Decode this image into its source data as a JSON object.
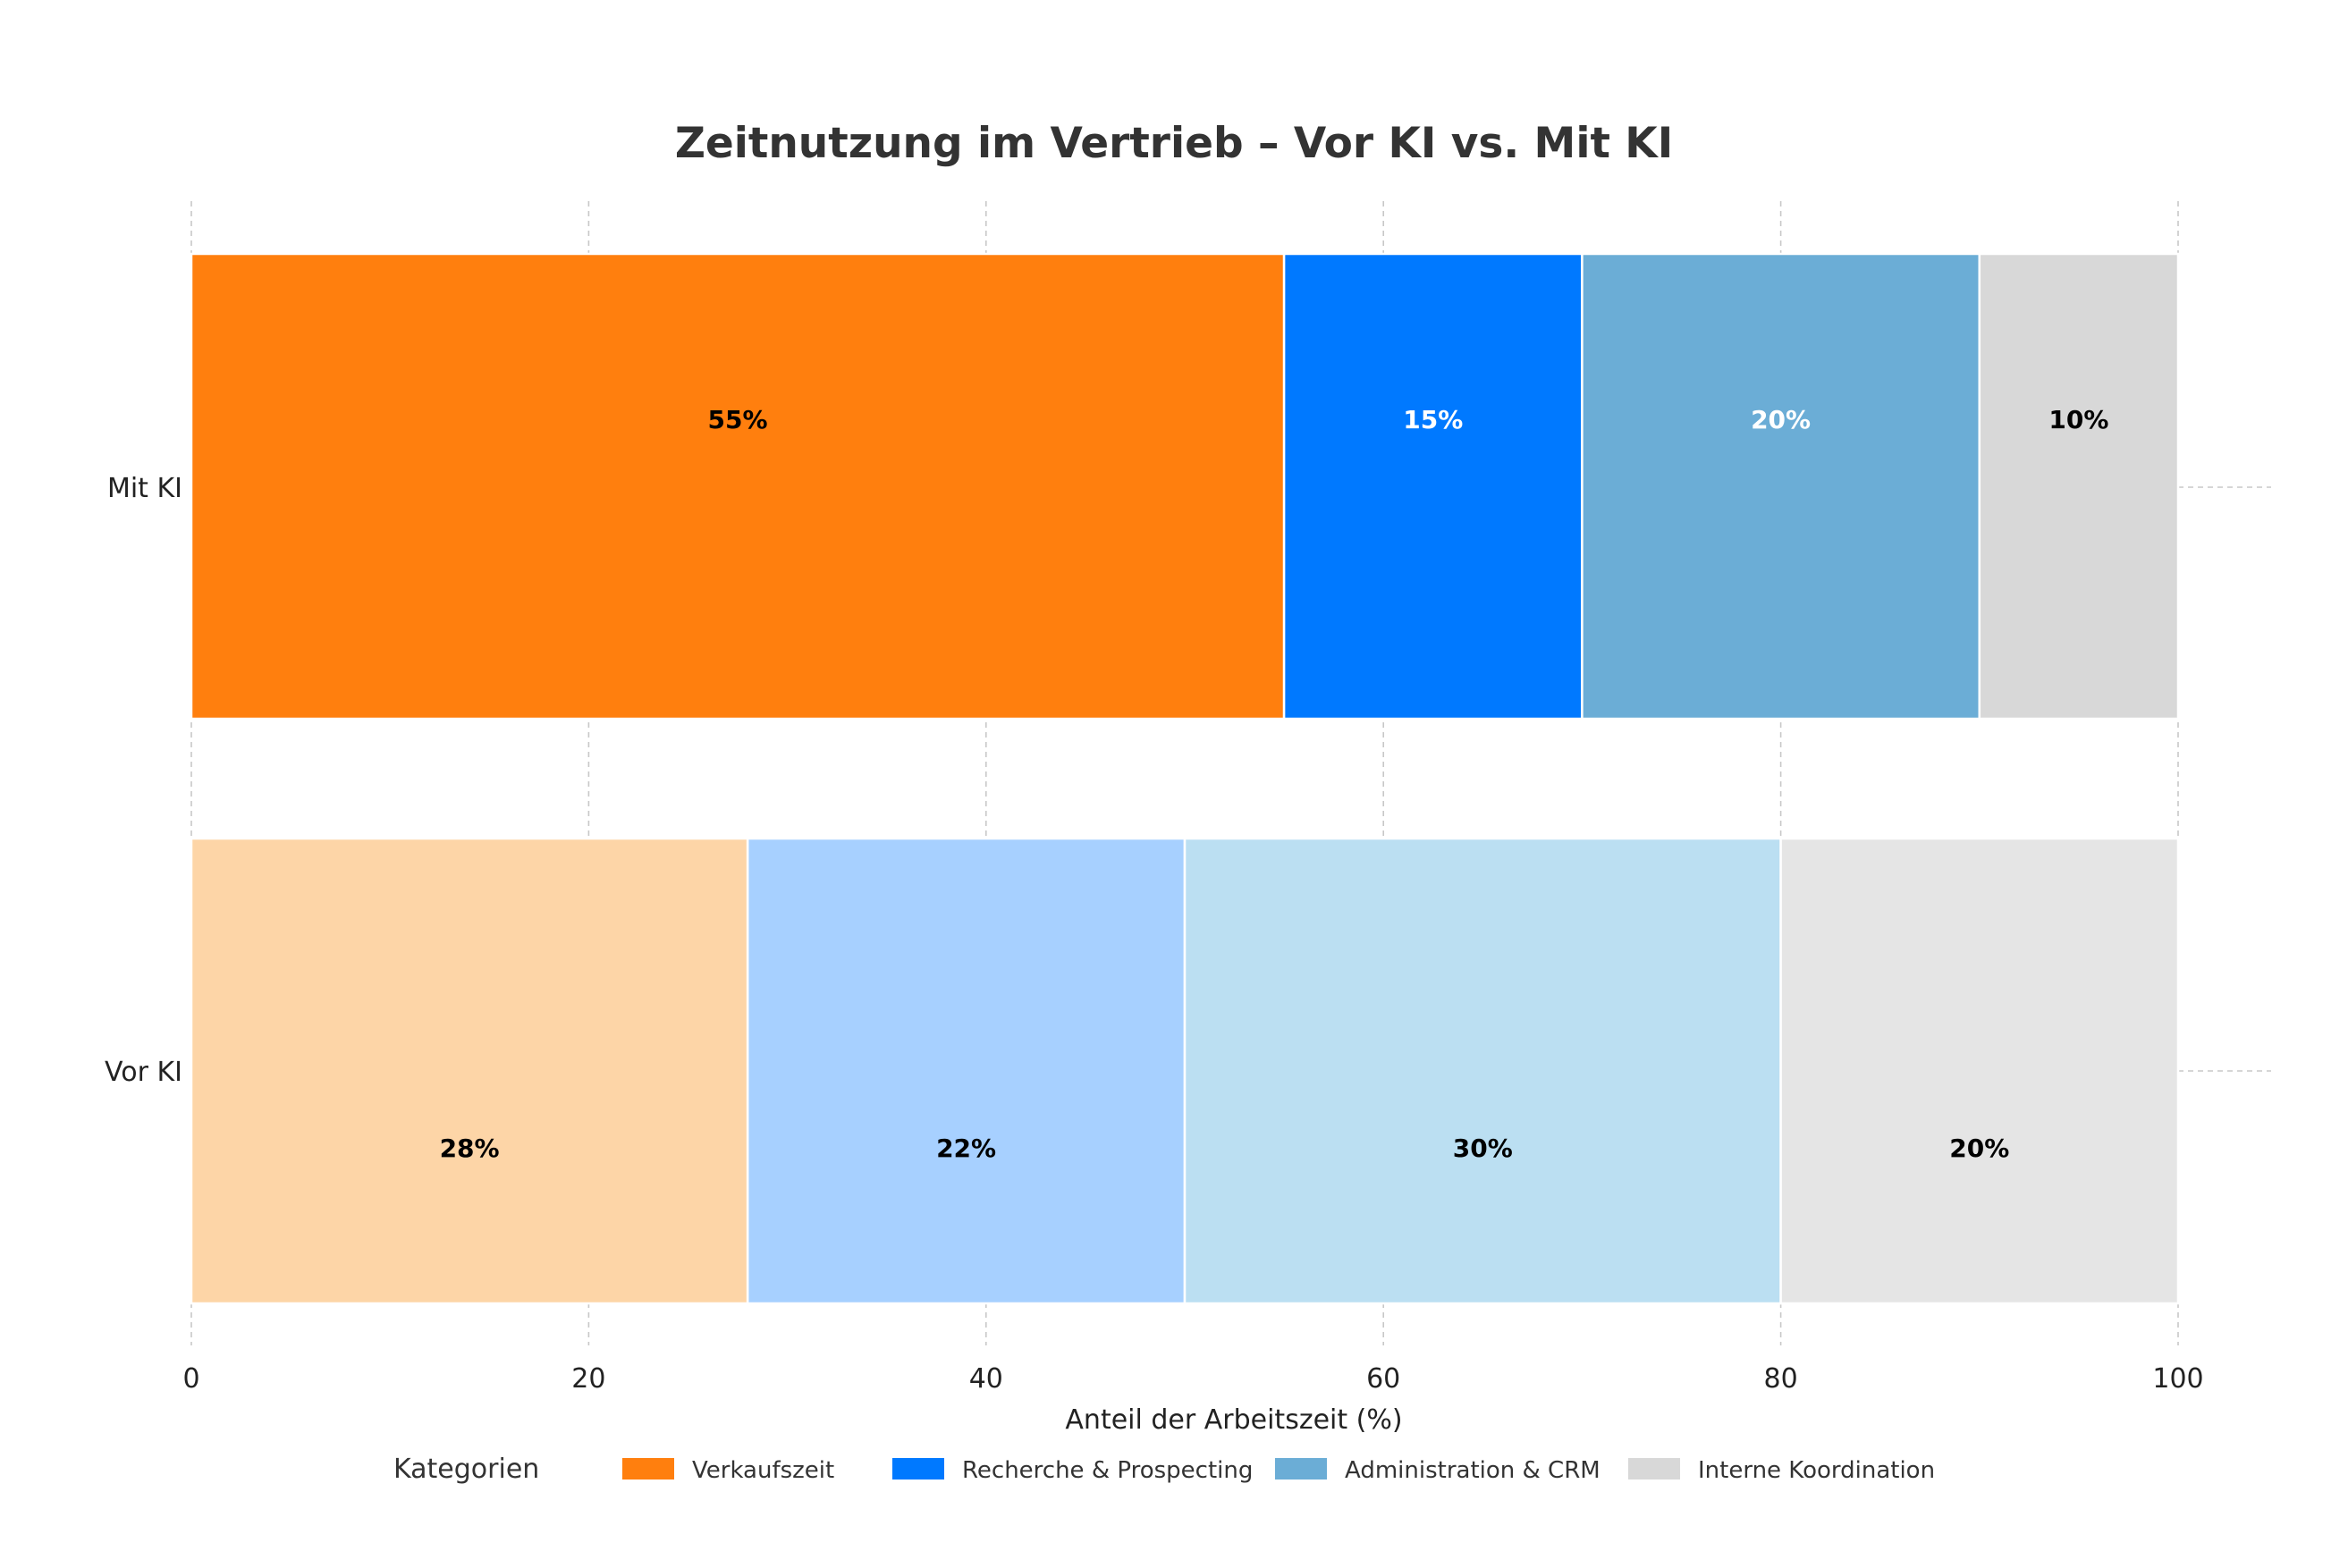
{
  "chart_data": {
    "type": "bar",
    "orientation": "horizontal",
    "stacked": true,
    "title": "Zeitnutzung im Vertrieb – Vor KI vs. Mit KI",
    "xlabel": "Anteil der Arbeitszeit (%)",
    "ylabel": "",
    "xlim": [
      0,
      100
    ],
    "xticks": [
      0,
      20,
      40,
      60,
      80,
      100
    ],
    "xtick_labels": [
      "0",
      "20",
      "40",
      "60",
      "80",
      "100"
    ],
    "grid": true,
    "categories": [
      "Mit KI",
      "Vor KI"
    ],
    "series": [
      {
        "name": "Verkaufszeit",
        "values": [
          55,
          28
        ],
        "colors": [
          "#FF7F0E",
          "#FDD5A7"
        ],
        "labels": [
          "55%",
          "28%"
        ],
        "label_colors": [
          "#000000",
          "#000000"
        ]
      },
      {
        "name": "Recherche & Prospecting",
        "values": [
          15,
          22
        ],
        "colors": [
          "#0079FF",
          "#A7D0FF"
        ],
        "labels": [
          "15%",
          "22%"
        ],
        "label_colors": [
          "#ffffff",
          "#000000"
        ]
      },
      {
        "name": "Administration & CRM",
        "values": [
          20,
          30
        ],
        "colors": [
          "#6BADD6",
          "#BBDFF2"
        ],
        "labels": [
          "20%",
          "30%"
        ],
        "label_colors": [
          "#ffffff",
          "#000000"
        ]
      },
      {
        "name": "Interne Koordination",
        "values": [
          10,
          20
        ],
        "colors": [
          "#D8D8D8",
          "#E5E5E5"
        ],
        "labels": [
          "10%",
          "20%"
        ],
        "label_colors": [
          "#000000",
          "#000000"
        ]
      }
    ],
    "legend": {
      "title": "Kategorien",
      "placement": "bottom",
      "entries": [
        {
          "name": "Verkaufszeit",
          "color": "#FF7F0E"
        },
        {
          "name": "Recherche & Prospecting",
          "color": "#0079FF"
        },
        {
          "name": "Administration & CRM",
          "color": "#6BADD6"
        },
        {
          "name": "Interne Koordination",
          "color": "#D8D8D8"
        }
      ]
    }
  }
}
